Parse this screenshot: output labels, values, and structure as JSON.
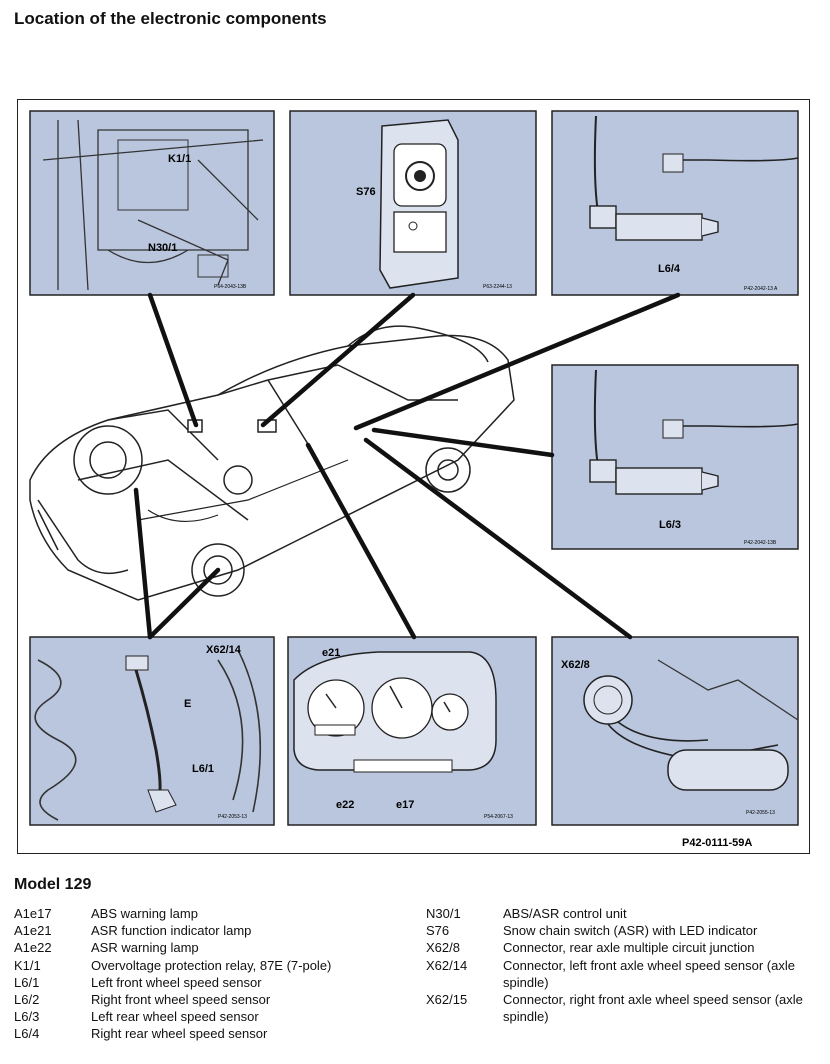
{
  "page_title": "Location of the electronic components",
  "figure": {
    "reference_code": "P42-0111-59A",
    "panels": [
      {
        "id": "panel-k1-n30",
        "labels": [
          "K1/1",
          "N30/1"
        ],
        "ref": "P64-2043-13B"
      },
      {
        "id": "panel-s76",
        "labels": [
          "S76"
        ],
        "ref": "P63-2244-13"
      },
      {
        "id": "panel-l6-4",
        "labels": [
          "L6/4"
        ],
        "ref": "P42-2042-13 A"
      },
      {
        "id": "panel-l6-3",
        "labels": [
          "L6/3"
        ],
        "ref": "P42-2042-13B"
      },
      {
        "id": "panel-x62-14",
        "labels": [
          "X62/14",
          "E",
          "L6/1"
        ],
        "ref": "P42-2053-13"
      },
      {
        "id": "panel-cluster",
        "labels": [
          "e21",
          "e22",
          "e17"
        ],
        "ref": "P54-2067-13"
      },
      {
        "id": "panel-x62-8",
        "labels": [
          "X62/8"
        ],
        "ref": "P42-2055-13"
      }
    ]
  },
  "model_title": "Model 129",
  "legend_left": [
    {
      "code": "A1e17",
      "desc": "ABS warning lamp"
    },
    {
      "code": "A1e21",
      "desc": "ASR function indicator lamp"
    },
    {
      "code": "A1e22",
      "desc": "ASR warning lamp"
    },
    {
      "code": "K1/1",
      "desc": "Overvoltage protection relay, 87E (7-pole)"
    },
    {
      "code": "L6/1",
      "desc": "Left front wheel speed sensor"
    },
    {
      "code": "L6/2",
      "desc": "Right front wheel speed sensor"
    },
    {
      "code": "L6/3",
      "desc": "Left rear wheel speed sensor"
    },
    {
      "code": "L6/4",
      "desc": "Right rear wheel speed sensor"
    }
  ],
  "legend_right": [
    {
      "code": "N30/1",
      "desc": "ABS/ASR control unit"
    },
    {
      "code": "S76",
      "desc": "Snow chain switch (ASR) with LED indicator"
    },
    {
      "code": "X62/8",
      "desc": "Connector, rear axle multiple circuit junction"
    },
    {
      "code": "X62/14",
      "desc": "Connector, left front axle wheel speed sensor (axle spindle)"
    },
    {
      "code": "X62/15",
      "desc": "Connector, right front axle wheel speed sensor (axle spindle)"
    }
  ],
  "colors": {
    "panel_fill": "#b9c6de",
    "line": "#111111"
  }
}
